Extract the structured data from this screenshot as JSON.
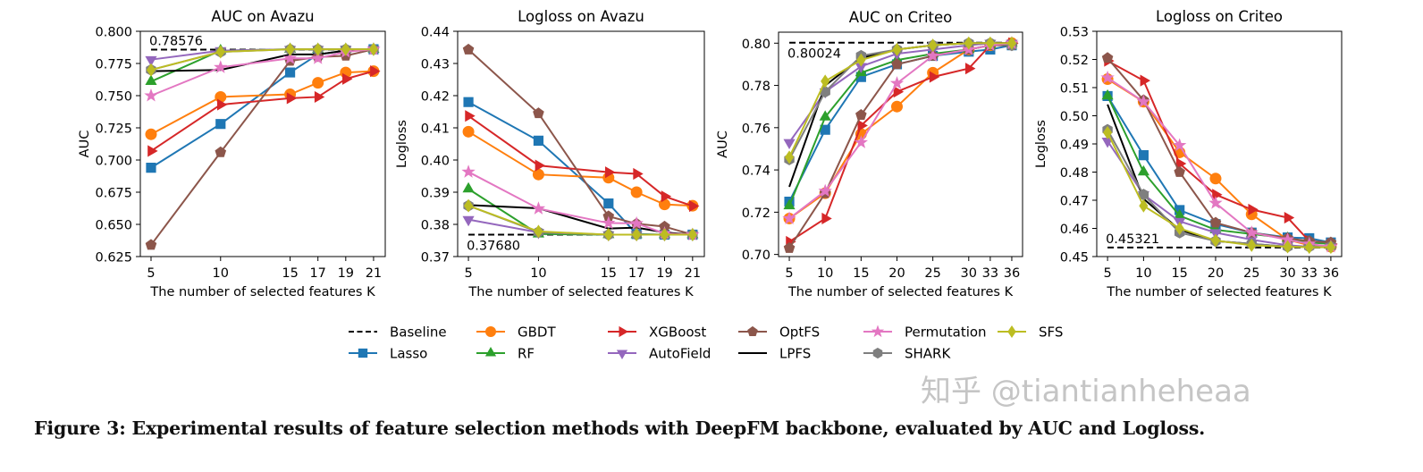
{
  "chart_data": [
    {
      "type": "line",
      "title": "AUC on Avazu",
      "xlabel": "The number of selected features K",
      "ylabel": "AUC",
      "x": [
        5,
        10,
        15,
        17,
        19,
        21
      ],
      "xticks": [
        "5",
        "10",
        "15",
        "17",
        "19",
        "21"
      ],
      "yticks": [
        "0.625",
        "0.650",
        "0.675",
        "0.700",
        "0.725",
        "0.750",
        "0.775",
        "0.800"
      ],
      "ylim": [
        0.625,
        0.8
      ],
      "baseline": {
        "name": "Baseline",
        "value": 0.78576,
        "label": "0.78576"
      },
      "series": [
        {
          "name": "Lasso",
          "values": [
            0.694,
            0.728,
            0.768,
            0.782,
            0.785,
            0.786
          ]
        },
        {
          "name": "GBDT",
          "values": [
            0.72,
            0.749,
            0.751,
            0.76,
            0.768,
            0.769
          ]
        },
        {
          "name": "XGBoost",
          "values": [
            0.707,
            0.743,
            0.748,
            0.749,
            0.763,
            0.769
          ]
        },
        {
          "name": "RF",
          "values": [
            0.761,
            0.785,
            0.786,
            0.786,
            0.786,
            0.786
          ]
        },
        {
          "name": "AutoField",
          "values": [
            0.778,
            0.785,
            0.786,
            0.786,
            0.786,
            0.786
          ]
        },
        {
          "name": "LPFS",
          "values": [
            0.769,
            0.77,
            0.782,
            0.782,
            0.785,
            0.786
          ]
        },
        {
          "name": "OptFS",
          "values": [
            0.634,
            0.706,
            0.777,
            0.78,
            0.781,
            0.786
          ]
        },
        {
          "name": "SHARK",
          "values": [
            0.77,
            0.784,
            0.786,
            0.786,
            0.786,
            0.786
          ]
        },
        {
          "name": "Permutation",
          "values": [
            0.75,
            0.772,
            0.779,
            0.779,
            0.784,
            0.786
          ]
        },
        {
          "name": "SFS",
          "values": [
            0.77,
            0.784,
            0.786,
            0.786,
            0.786,
            0.786
          ]
        }
      ]
    },
    {
      "type": "line",
      "title": "Logloss on Avazu",
      "xlabel": "The number of selected features K",
      "ylabel": "Logloss",
      "x": [
        5,
        10,
        15,
        17,
        19,
        21
      ],
      "xticks": [
        "5",
        "10",
        "15",
        "17",
        "19",
        "21"
      ],
      "yticks": [
        "0.37",
        "0.38",
        "0.39",
        "0.40",
        "0.41",
        "0.42",
        "0.43",
        "0.44"
      ],
      "ylim": [
        0.37,
        0.44
      ],
      "baseline": {
        "name": "Baseline",
        "value": 0.3768,
        "label": "0.37680"
      },
      "series": [
        {
          "name": "Lasso",
          "values": [
            0.418,
            0.406,
            0.3865,
            0.377,
            0.3768,
            0.3768
          ]
        },
        {
          "name": "GBDT",
          "values": [
            0.4088,
            0.3955,
            0.3945,
            0.39,
            0.3862,
            0.3858
          ]
        },
        {
          "name": "XGBoost",
          "values": [
            0.4137,
            0.3983,
            0.3962,
            0.3957,
            0.3887,
            0.3857
          ]
        },
        {
          "name": "RF",
          "values": [
            0.391,
            0.377,
            0.3768,
            0.3768,
            0.3768,
            0.3768
          ]
        },
        {
          "name": "AutoField",
          "values": [
            0.3815,
            0.3775,
            0.3768,
            0.3768,
            0.3768,
            0.3768
          ]
        },
        {
          "name": "LPFS",
          "values": [
            0.386,
            0.385,
            0.3787,
            0.379,
            0.3775,
            0.3768
          ]
        },
        {
          "name": "OptFS",
          "values": [
            0.4343,
            0.4145,
            0.3825,
            0.3802,
            0.3793,
            0.3768
          ]
        },
        {
          "name": "SHARK",
          "values": [
            0.3858,
            0.3776,
            0.3768,
            0.3768,
            0.3768,
            0.3768
          ]
        },
        {
          "name": "Permutation",
          "values": [
            0.3963,
            0.3849,
            0.3804,
            0.3803,
            0.3772,
            0.3768
          ]
        },
        {
          "name": "SFS",
          "values": [
            0.3858,
            0.3778,
            0.3768,
            0.3768,
            0.3768,
            0.3768
          ]
        }
      ]
    },
    {
      "type": "line",
      "title": "AUC on Criteo",
      "xlabel": "The number of selected features K",
      "ylabel": "AUC",
      "x": [
        5,
        10,
        15,
        20,
        25,
        30,
        33,
        36
      ],
      "xticks": [
        "5",
        "10",
        "15",
        "20",
        "25",
        "30",
        "33",
        "36"
      ],
      "yticks": [
        "0.70",
        "0.72",
        "0.74",
        "0.76",
        "0.78",
        "0.80"
      ],
      "ylim": [
        0.699,
        0.8052
      ],
      "baseline": {
        "name": "Baseline",
        "value": 0.80024,
        "label": "0.80024"
      },
      "series": [
        {
          "name": "Lasso",
          "values": [
            0.725,
            0.759,
            0.784,
            0.79,
            0.794,
            0.796,
            0.797,
            0.799
          ]
        },
        {
          "name": "GBDT",
          "values": [
            0.717,
            0.729,
            0.757,
            0.77,
            0.786,
            0.797,
            0.799,
            0.8
          ]
        },
        {
          "name": "XGBoost",
          "values": [
            0.706,
            0.717,
            0.761,
            0.777,
            0.784,
            0.788,
            0.799,
            0.8
          ]
        },
        {
          "name": "RF",
          "values": [
            0.723,
            0.765,
            0.786,
            0.792,
            0.795,
            0.797,
            0.799,
            0.8
          ]
        },
        {
          "name": "AutoField",
          "values": [
            0.753,
            0.777,
            0.789,
            0.795,
            0.797,
            0.799,
            0.8,
            0.8
          ]
        },
        {
          "name": "LPFS",
          "values": [
            0.732,
            0.78,
            0.793,
            0.797,
            0.799,
            0.8,
            0.8,
            0.8
          ]
        },
        {
          "name": "OptFS",
          "values": [
            0.703,
            0.729,
            0.766,
            0.79,
            0.794,
            0.797,
            0.799,
            0.799
          ]
        },
        {
          "name": "SHARK",
          "values": [
            0.745,
            0.777,
            0.794,
            0.797,
            0.799,
            0.8,
            0.8,
            0.799
          ]
        },
        {
          "name": "Permutation",
          "values": [
            0.717,
            0.73,
            0.753,
            0.781,
            0.794,
            0.797,
            0.799,
            0.8
          ]
        },
        {
          "name": "SFS",
          "values": [
            0.746,
            0.782,
            0.792,
            0.797,
            0.799,
            0.8,
            0.8,
            0.8
          ]
        }
      ]
    },
    {
      "type": "line",
      "title": "Logloss on Criteo",
      "xlabel": "The number of selected features K",
      "ylabel": "Logloss",
      "x": [
        5,
        10,
        15,
        20,
        25,
        30,
        33,
        36
      ],
      "xticks": [
        "5",
        "10",
        "15",
        "20",
        "25",
        "30",
        "33",
        "36"
      ],
      "yticks": [
        "0.45",
        "0.46",
        "0.47",
        "0.48",
        "0.49",
        "0.50",
        "0.51",
        "0.52",
        "0.53"
      ],
      "ylim": [
        0.45,
        0.53
      ],
      "baseline": {
        "name": "Baseline",
        "value": 0.45321,
        "label": "0.45321"
      },
      "series": [
        {
          "name": "Lasso",
          "values": [
            0.507,
            0.486,
            0.4665,
            0.4615,
            0.4585,
            0.4568,
            0.4565,
            0.455
          ]
        },
        {
          "name": "GBDT",
          "values": [
            0.513,
            0.505,
            0.487,
            0.4777,
            0.465,
            0.456,
            0.454,
            0.4535
          ]
        },
        {
          "name": "XGBoost",
          "values": [
            0.5195,
            0.5125,
            0.483,
            0.472,
            0.4667,
            0.4638,
            0.4555,
            0.4545
          ]
        },
        {
          "name": "RF",
          "values": [
            0.507,
            0.48,
            0.4645,
            0.4595,
            0.458,
            0.4565,
            0.455,
            0.4545
          ]
        },
        {
          "name": "AutoField",
          "values": [
            0.491,
            0.472,
            0.4625,
            0.4585,
            0.456,
            0.454,
            0.4535,
            0.4535
          ]
        },
        {
          "name": "LPFS",
          "values": [
            0.504,
            0.4705,
            0.4595,
            0.4555,
            0.4545,
            0.4535,
            0.4535,
            0.4533
          ]
        },
        {
          "name": "OptFS",
          "values": [
            0.5205,
            0.5055,
            0.48,
            0.462,
            0.4585,
            0.4565,
            0.4555,
            0.455
          ]
        },
        {
          "name": "SHARK",
          "values": [
            0.495,
            0.472,
            0.4585,
            0.4555,
            0.4545,
            0.4535,
            0.4535,
            0.4535
          ]
        },
        {
          "name": "Permutation",
          "values": [
            0.5135,
            0.505,
            0.4895,
            0.469,
            0.4585,
            0.456,
            0.4545,
            0.4535
          ]
        },
        {
          "name": "SFS",
          "values": [
            0.494,
            0.468,
            0.46,
            0.4557,
            0.454,
            0.4535,
            0.4533,
            0.4533
          ]
        }
      ]
    }
  ],
  "legend": {
    "placement": "bottom-center",
    "items": [
      {
        "name": "Baseline",
        "color": "#000000",
        "marker": "none",
        "style": "dashed"
      },
      {
        "name": "Lasso",
        "color": "#1f77b4",
        "marker": "square"
      },
      {
        "name": "GBDT",
        "color": "#ff7f0e",
        "marker": "circle"
      },
      {
        "name": "RF",
        "color": "#2ca02c",
        "marker": "triangle-up"
      },
      {
        "name": "XGBoost",
        "color": "#d62728",
        "marker": "triangle-right"
      },
      {
        "name": "AutoField",
        "color": "#9467bd",
        "marker": "triangle-down"
      },
      {
        "name": "OptFS",
        "color": "#8c564b",
        "marker": "pentagon"
      },
      {
        "name": "LPFS",
        "color": "#000000",
        "marker": "none"
      },
      {
        "name": "Permutation",
        "color": "#e377c2",
        "marker": "star"
      },
      {
        "name": "SHARK",
        "color": "#7f7f7f",
        "marker": "hexagon"
      },
      {
        "name": "SFS",
        "color": "#bcbd22",
        "marker": "diamond"
      }
    ]
  },
  "caption": "Figure 3: Experimental results of feature selection methods with DeepFM backbone, evaluated by AUC and Logloss.",
  "watermark": "知乎 @tiantianheheaa"
}
